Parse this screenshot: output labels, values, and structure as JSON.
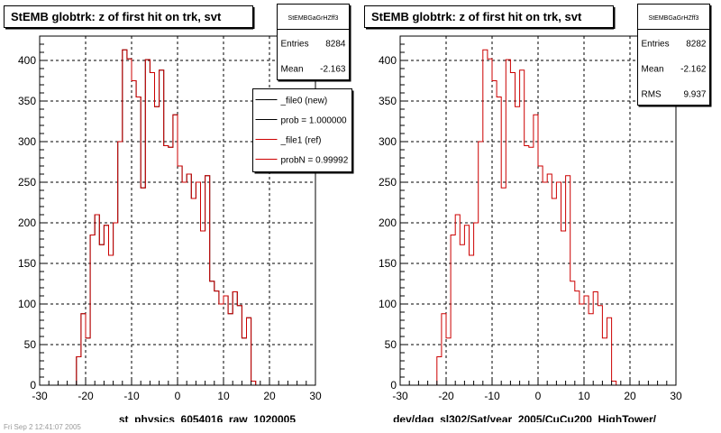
{
  "footer_text": "Fri Sep  2 12:41:07 2005",
  "colors": {
    "hist": "#cc0000",
    "frame": "#000000",
    "grid": "#000000",
    "background": "#ffffff"
  },
  "chart_data": [
    {
      "type": "step-histogram",
      "title": "StEMB globtrk: z of first hit on trk, svt",
      "xlabel": "st_physics_6054016_raw_1020005",
      "ylabel": "",
      "xlim": [
        -30,
        30
      ],
      "ylim": [
        0,
        430
      ],
      "x_ticks": [
        -30,
        -20,
        -10,
        0,
        10,
        20,
        30
      ],
      "y_ticks": [
        0,
        50,
        100,
        150,
        200,
        250,
        300,
        350,
        400
      ],
      "grid": true,
      "bin_edges": [
        -23,
        -22,
        -21,
        -20,
        -19,
        -18,
        -17,
        -16,
        -15,
        -14,
        -13,
        -12,
        -11,
        -10,
        -9,
        -8,
        -7,
        -6,
        -5,
        -4,
        -3,
        -2,
        -1,
        0,
        1,
        2,
        3,
        4,
        5,
        6,
        7,
        8,
        9,
        10,
        11,
        12,
        13,
        14,
        15,
        16,
        17,
        18,
        19,
        20,
        21,
        22,
        23
      ],
      "series": [
        {
          "name": "_file0 (new)",
          "color": "#000000",
          "values": [
            0,
            35,
            88,
            58,
            185,
            210,
            173,
            197,
            160,
            200,
            300,
            413,
            402,
            375,
            355,
            243,
            401,
            385,
            343,
            388,
            295,
            293,
            333,
            270,
            250,
            260,
            230,
            250,
            190,
            258,
            128,
            116,
            100,
            110,
            88,
            115,
            98,
            58,
            83,
            5,
            0,
            0,
            0,
            0,
            0,
            0
          ]
        },
        {
          "name": "_file1 (ref)",
          "color": "#cc0000",
          "values": [
            0,
            35,
            88,
            58,
            185,
            210,
            173,
            197,
            160,
            200,
            300,
            413,
            402,
            375,
            355,
            243,
            401,
            385,
            343,
            388,
            295,
            293,
            333,
            270,
            250,
            260,
            230,
            250,
            190,
            258,
            128,
            116,
            100,
            110,
            88,
            115,
            98,
            58,
            83,
            5,
            0,
            0,
            0,
            0,
            0,
            0
          ]
        }
      ],
      "stats": {
        "name": "StEMBGaGrHZff3",
        "rows": [
          {
            "label": "Entries",
            "value": "8284"
          },
          {
            "label": "Mean",
            "value": "-2.163"
          }
        ]
      },
      "legend": {
        "placement": "top-right",
        "entries": [
          {
            "label": "_file0 (new)",
            "color": "#000000"
          },
          {
            "label": "prob = 1.000000",
            "color": "#000000"
          },
          {
            "label": "_file1 (ref)",
            "color": "#cc0000"
          },
          {
            "label": "probN = 0.99992",
            "color": "#cc0000"
          }
        ]
      }
    },
    {
      "type": "step-histogram",
      "title": "StEMB globtrk: z of first hit on trk, svt",
      "xlabel": "dev/daq_sl302/Sat/year_2005/CuCu200_HighTower/",
      "ylabel": "",
      "xlim": [
        -30,
        30
      ],
      "ylim": [
        0,
        430
      ],
      "x_ticks": [
        -30,
        -20,
        -10,
        0,
        10,
        20,
        30
      ],
      "y_ticks": [
        0,
        50,
        100,
        150,
        200,
        250,
        300,
        350,
        400
      ],
      "grid": true,
      "bin_edges": [
        -23,
        -22,
        -21,
        -20,
        -19,
        -18,
        -17,
        -16,
        -15,
        -14,
        -13,
        -12,
        -11,
        -10,
        -9,
        -8,
        -7,
        -6,
        -5,
        -4,
        -3,
        -2,
        -1,
        0,
        1,
        2,
        3,
        4,
        5,
        6,
        7,
        8,
        9,
        10,
        11,
        12,
        13,
        14,
        15,
        16,
        17,
        18,
        19,
        20,
        21,
        22,
        23
      ],
      "series": [
        {
          "name": "",
          "color": "#cc0000",
          "values": [
            0,
            35,
            88,
            58,
            185,
            210,
            173,
            197,
            160,
            200,
            300,
            413,
            402,
            375,
            355,
            243,
            401,
            385,
            343,
            388,
            295,
            293,
            333,
            270,
            250,
            260,
            230,
            250,
            190,
            258,
            128,
            116,
            100,
            110,
            88,
            115,
            98,
            58,
            83,
            5,
            0,
            0,
            0,
            0,
            0,
            0
          ]
        }
      ],
      "stats": {
        "name": "StEMBGaGrHZff3",
        "rows": [
          {
            "label": "Entries",
            "value": "8282"
          },
          {
            "label": "Mean",
            "value": "-2.162"
          },
          {
            "label": "RMS",
            "value": "9.937"
          }
        ]
      },
      "legend": null
    }
  ]
}
